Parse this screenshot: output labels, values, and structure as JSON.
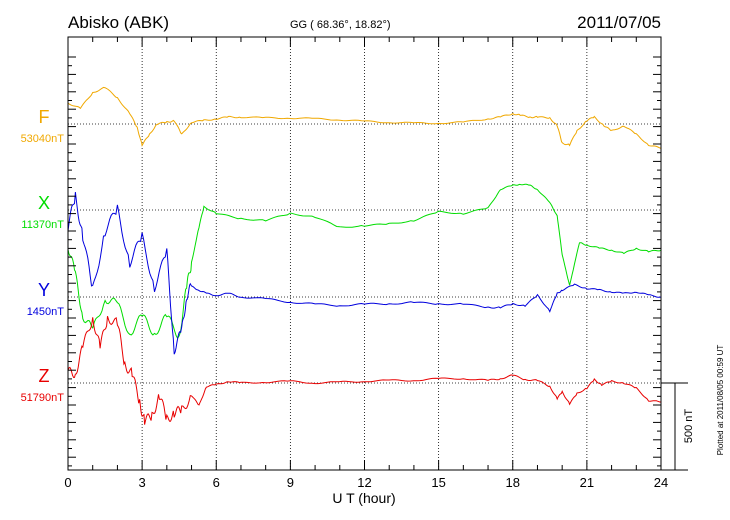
{
  "header": {
    "station": "Abisko (ABK)",
    "coords": "GG ( 68.36°,  18.82°)",
    "date": "2011/07/05"
  },
  "side_note": "Plotted at 2011/08/05 00:59 UT",
  "scale_bar": {
    "label": "500 nT",
    "value_nT": 500
  },
  "chart_data": {
    "type": "line",
    "title": "Abisko (ABK)",
    "xlabel": "U T (hour)",
    "ylabel": "",
    "xlim": [
      0,
      24
    ],
    "x_ticks": [
      0,
      3,
      6,
      9,
      12,
      15,
      18,
      21,
      24
    ],
    "x_tick_labels": [
      "0",
      "3",
      "6",
      "9",
      "12",
      "15",
      "18",
      "21",
      "24"
    ],
    "grid": true,
    "units": "nT",
    "offset_scale_nT": 500,
    "series": [
      {
        "name": "F",
        "baseline_label": "53040nT",
        "color": "#f0a800",
        "x": [
          0,
          0.5,
          1,
          1.5,
          2,
          2.5,
          2.8,
          3,
          3.3,
          3.6,
          4,
          4.3,
          4.6,
          5,
          5.5,
          6,
          6.5,
          7,
          8,
          9,
          10,
          11,
          12,
          13,
          14,
          15,
          16,
          17,
          17.5,
          18,
          18.3,
          18.7,
          19,
          19.5,
          19.8,
          20,
          20.3,
          20.6,
          21,
          21.3,
          21.7,
          22,
          22.5,
          23,
          23.5,
          24
        ],
        "y": [
          120,
          90,
          180,
          210,
          150,
          60,
          -20,
          -120,
          -60,
          0,
          10,
          20,
          -60,
          10,
          20,
          30,
          40,
          40,
          35,
          35,
          30,
          25,
          15,
          10,
          5,
          5,
          10,
          30,
          40,
          60,
          50,
          40,
          40,
          35,
          -10,
          -110,
          -120,
          -40,
          20,
          40,
          -10,
          -40,
          -10,
          -60,
          -120,
          -140
        ]
      },
      {
        "name": "X",
        "baseline_label": "11370nT",
        "color": "#00dd00",
        "x": [
          0,
          0.3,
          0.6,
          1,
          1.5,
          2,
          2.5,
          3,
          3.5,
          4,
          4.5,
          4.8,
          5,
          5.3,
          5.5,
          6,
          7,
          8,
          9,
          10,
          11,
          12,
          13,
          14,
          15,
          16,
          17,
          17.5,
          18,
          18.3,
          18.7,
          19,
          19.5,
          19.8,
          20,
          20.3,
          20.7,
          21,
          21.5,
          22,
          22.5,
          23,
          23.5,
          24
        ],
        "y": [
          -200,
          -380,
          -600,
          -700,
          -500,
          -550,
          -700,
          -620,
          -700,
          -620,
          -720,
          -450,
          -300,
          -100,
          20,
          -20,
          -50,
          -60,
          -20,
          -40,
          -100,
          -90,
          -80,
          -60,
          -10,
          -20,
          10,
          120,
          140,
          150,
          140,
          120,
          40,
          -30,
          -260,
          -430,
          -190,
          -200,
          -220,
          -230,
          -250,
          -220,
          -240,
          -230
        ]
      },
      {
        "name": "Y",
        "baseline_label": "1450nT",
        "color": "#0000dd",
        "x": [
          0,
          0.3,
          0.6,
          1,
          1.5,
          2,
          2.5,
          3,
          3.5,
          4,
          4.3,
          4.6,
          4.8,
          5,
          5.3,
          5.6,
          6,
          6.5,
          7,
          8,
          9,
          10,
          11,
          12,
          13,
          14,
          15,
          16,
          17,
          17.5,
          18,
          18.5,
          19,
          19.5,
          19.8,
          20,
          20.5,
          21,
          21.5,
          22,
          22.5,
          23,
          23.5,
          24
        ],
        "y": [
          400,
          580,
          350,
          40,
          380,
          500,
          200,
          340,
          60,
          250,
          -300,
          -200,
          10,
          60,
          40,
          20,
          10,
          20,
          0,
          -10,
          -30,
          -40,
          -50,
          -40,
          -40,
          -30,
          -40,
          -40,
          -60,
          -60,
          -40,
          -50,
          10,
          -80,
          20,
          40,
          70,
          50,
          40,
          30,
          20,
          30,
          10,
          0
        ]
      },
      {
        "name": "Z",
        "baseline_label": "51790nT",
        "color": "#e80000",
        "x": [
          0,
          0.3,
          0.6,
          1,
          1.3,
          1.6,
          2,
          2.3,
          2.6,
          2.9,
          3.1,
          3.4,
          3.7,
          4,
          4.3,
          4.6,
          5,
          5.3,
          5.6,
          6,
          6.5,
          7,
          8,
          9,
          10,
          11,
          12,
          13,
          14,
          15,
          16,
          17,
          17.5,
          18,
          18.5,
          19,
          19.5,
          19.8,
          20,
          20.3,
          20.6,
          21,
          21.3,
          21.6,
          22,
          22.5,
          23,
          23.5,
          24
        ],
        "y": [
          60,
          60,
          200,
          380,
          200,
          380,
          340,
          110,
          50,
          -110,
          -220,
          -190,
          -70,
          -210,
          -170,
          -160,
          -70,
          -130,
          -20,
          -10,
          10,
          0,
          5,
          10,
          0,
          5,
          10,
          15,
          15,
          25,
          25,
          15,
          25,
          45,
          20,
          15,
          -20,
          -90,
          -50,
          -120,
          -60,
          -30,
          20,
          -10,
          10,
          0,
          -30,
          -100,
          -110
        ]
      }
    ]
  }
}
